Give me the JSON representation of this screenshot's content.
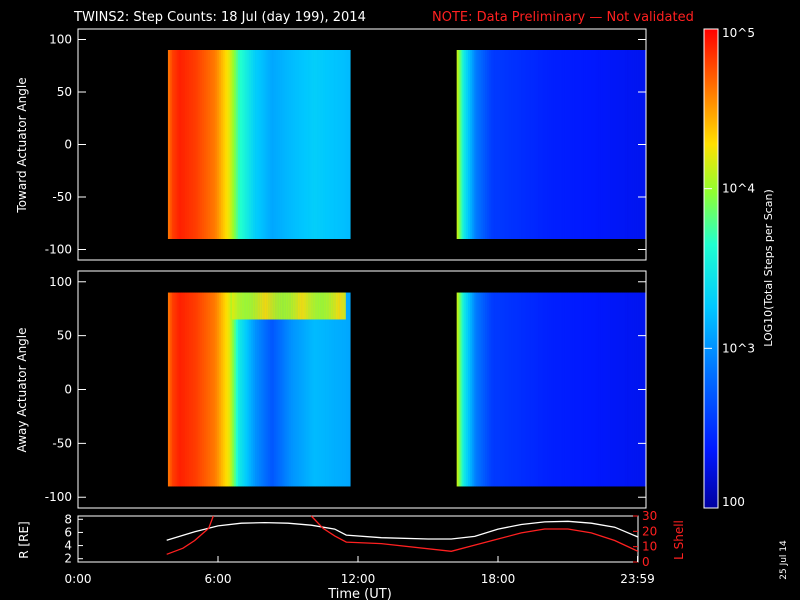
{
  "header": {
    "title": "TWINS2: Step Counts: 18 Jul (day 199), 2014",
    "note": "NOTE: Data Preliminary — Not validated",
    "note_color": "#ff2020"
  },
  "side_date": "25 Jul 14",
  "colorbar": {
    "label": "LOG10(Total Steps per Scan)",
    "ticks": [
      "10^5",
      "10^4",
      "10^3",
      "100"
    ],
    "range_log10": [
      2,
      5
    ]
  },
  "chart_data": [
    {
      "type": "heatmap",
      "ylabel": "Toward Actuator Angle",
      "ylim": [
        -110,
        110
      ],
      "yticks": [
        "100",
        "50",
        "0",
        "-50",
        "-100"
      ],
      "x_range_hours": [
        0,
        24
      ],
      "data_intervals_hours": [
        [
          3.8,
          11.5
        ],
        [
          16.0,
          24.0
        ]
      ],
      "profile_log10": [
        [
          3.8,
          4.6
        ],
        [
          4.0,
          4.8
        ],
        [
          4.3,
          4.9
        ],
        [
          5.0,
          4.8
        ],
        [
          5.8,
          4.6
        ],
        [
          6.4,
          4.2
        ],
        [
          6.8,
          3.7
        ],
        [
          7.5,
          3.3
        ],
        [
          8.2,
          3.1
        ],
        [
          9.0,
          3.2
        ],
        [
          10.0,
          3.3
        ],
        [
          11.5,
          3.2
        ],
        [
          16.0,
          4.2
        ],
        [
          16.3,
          3.5
        ],
        [
          16.8,
          2.9
        ],
        [
          17.5,
          2.55
        ],
        [
          20,
          2.4
        ],
        [
          24,
          2.3
        ]
      ]
    },
    {
      "type": "heatmap",
      "ylabel": "Away Actuator Angle",
      "ylim": [
        -110,
        110
      ],
      "yticks": [
        "100",
        "50",
        "0",
        "-50",
        "-100"
      ],
      "x_range_hours": [
        0,
        24
      ],
      "data_intervals_hours": [
        [
          3.8,
          11.5
        ],
        [
          16.0,
          24.0
        ]
      ],
      "profile_log10": [
        [
          3.8,
          4.6
        ],
        [
          4.0,
          4.8
        ],
        [
          4.3,
          4.9
        ],
        [
          5.0,
          4.8
        ],
        [
          5.8,
          4.6
        ],
        [
          6.4,
          4.2
        ],
        [
          6.8,
          3.5
        ],
        [
          7.5,
          3.0
        ],
        [
          8.2,
          2.7
        ],
        [
          9.0,
          3.0
        ],
        [
          10.0,
          3.2
        ],
        [
          11.5,
          3.1
        ],
        [
          16.0,
          4.2
        ],
        [
          16.3,
          3.5
        ],
        [
          16.8,
          2.9
        ],
        [
          17.5,
          2.55
        ],
        [
          20,
          2.4
        ],
        [
          24,
          2.3
        ]
      ],
      "high_band": {
        "angle_min": 65,
        "angle_max": 90,
        "hours": [
          6.5,
          11.2
        ],
        "log10": 4.3
      }
    },
    {
      "type": "line",
      "ylabel_left": "R [RE]",
      "ylabel_right": "L Shell",
      "xlabel": "Time (UT)",
      "xticks": [
        "0:00",
        "6:00",
        "12:00",
        "18:00",
        "23:59"
      ],
      "x_tick_hours": [
        0,
        6,
        12,
        18,
        23.98
      ],
      "yticks_left": [
        "8",
        "6",
        "4",
        "2"
      ],
      "yticks_left_values": [
        8,
        6,
        4,
        2
      ],
      "ylim_left": [
        1.5,
        8.5
      ],
      "yticks_right": [
        "30",
        "20",
        "10",
        "0"
      ],
      "yticks_right_values": [
        30,
        20,
        10,
        0
      ],
      "ylim_right": [
        0,
        30
      ],
      "series": [
        {
          "color": "#ffffff",
          "x": [
            3.8,
            5,
            6,
            7,
            8,
            9,
            10,
            11,
            11.5,
            13,
            15,
            16,
            17,
            18,
            19,
            20,
            21,
            22,
            23,
            24
          ],
          "y": [
            4.8,
            6.1,
            7.0,
            7.4,
            7.5,
            7.4,
            7.1,
            6.5,
            5.6,
            5.2,
            5.0,
            5.0,
            5.4,
            6.5,
            7.2,
            7.6,
            7.7,
            7.4,
            6.8,
            5.3
          ]
        },
        {
          "color": "#ff2020",
          "x": [
            3.8,
            4.5,
            5.0,
            5.6,
            5.8
          ],
          "y": [
            5,
            9,
            14,
            22,
            30
          ]
        },
        {
          "color": "#ff2020",
          "x": [
            10.0,
            10.5,
            11.0,
            11.5,
            13,
            16,
            17,
            18,
            19,
            20,
            21,
            22,
            23,
            24
          ],
          "y": [
            30,
            22,
            17,
            13,
            12,
            7,
            11,
            15,
            19,
            21.5,
            21.5,
            19,
            14,
            7
          ]
        }
      ]
    }
  ]
}
